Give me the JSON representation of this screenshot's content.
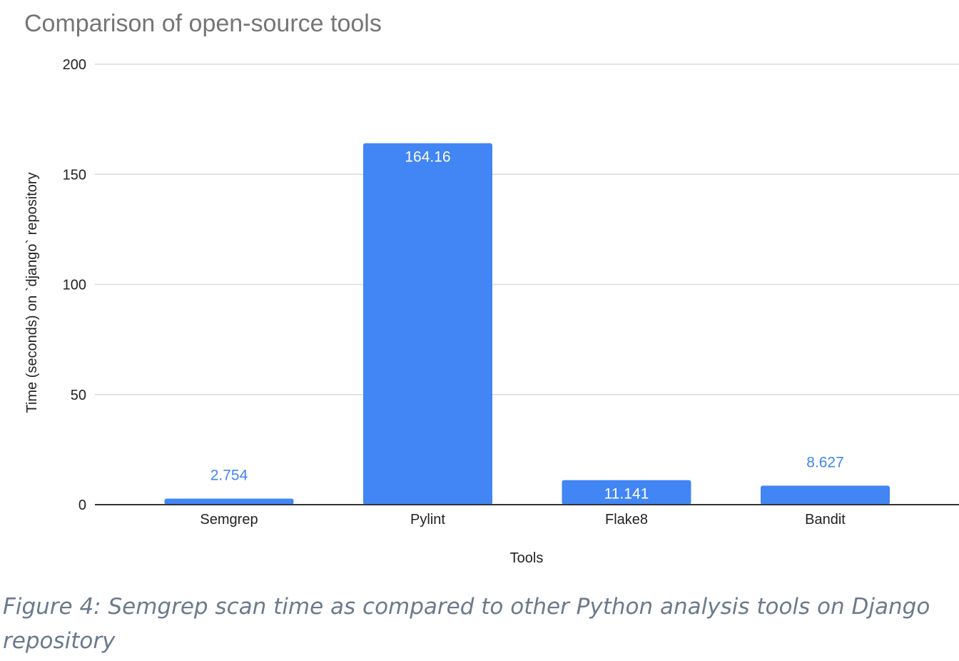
{
  "chart_data": {
    "type": "bar",
    "title": "Comparison of open-source tools",
    "xlabel": "Tools",
    "ylabel": "Time (seconds) on `django` repository",
    "categories": [
      "Semgrep",
      "Pylint",
      "Flake8",
      "Bandit"
    ],
    "values": [
      2.754,
      164.16,
      11.141,
      8.627
    ],
    "data_labels": [
      "2.754",
      "164.16",
      "11.141",
      "8.627"
    ],
    "ylim": [
      0,
      200
    ],
    "yticks": [
      0,
      50,
      100,
      150,
      200
    ],
    "ytick_labels": [
      "0",
      "50",
      "100",
      "150",
      "200"
    ],
    "grid": true,
    "legend": "none",
    "colors": {
      "bar": "#4285f4",
      "label_inside": "#ffffff",
      "label_outside": "#4285f4",
      "title": "#757575"
    }
  },
  "caption": "Figure 4: Semgrep scan time as compared to other Python analysis tools on Django repository"
}
